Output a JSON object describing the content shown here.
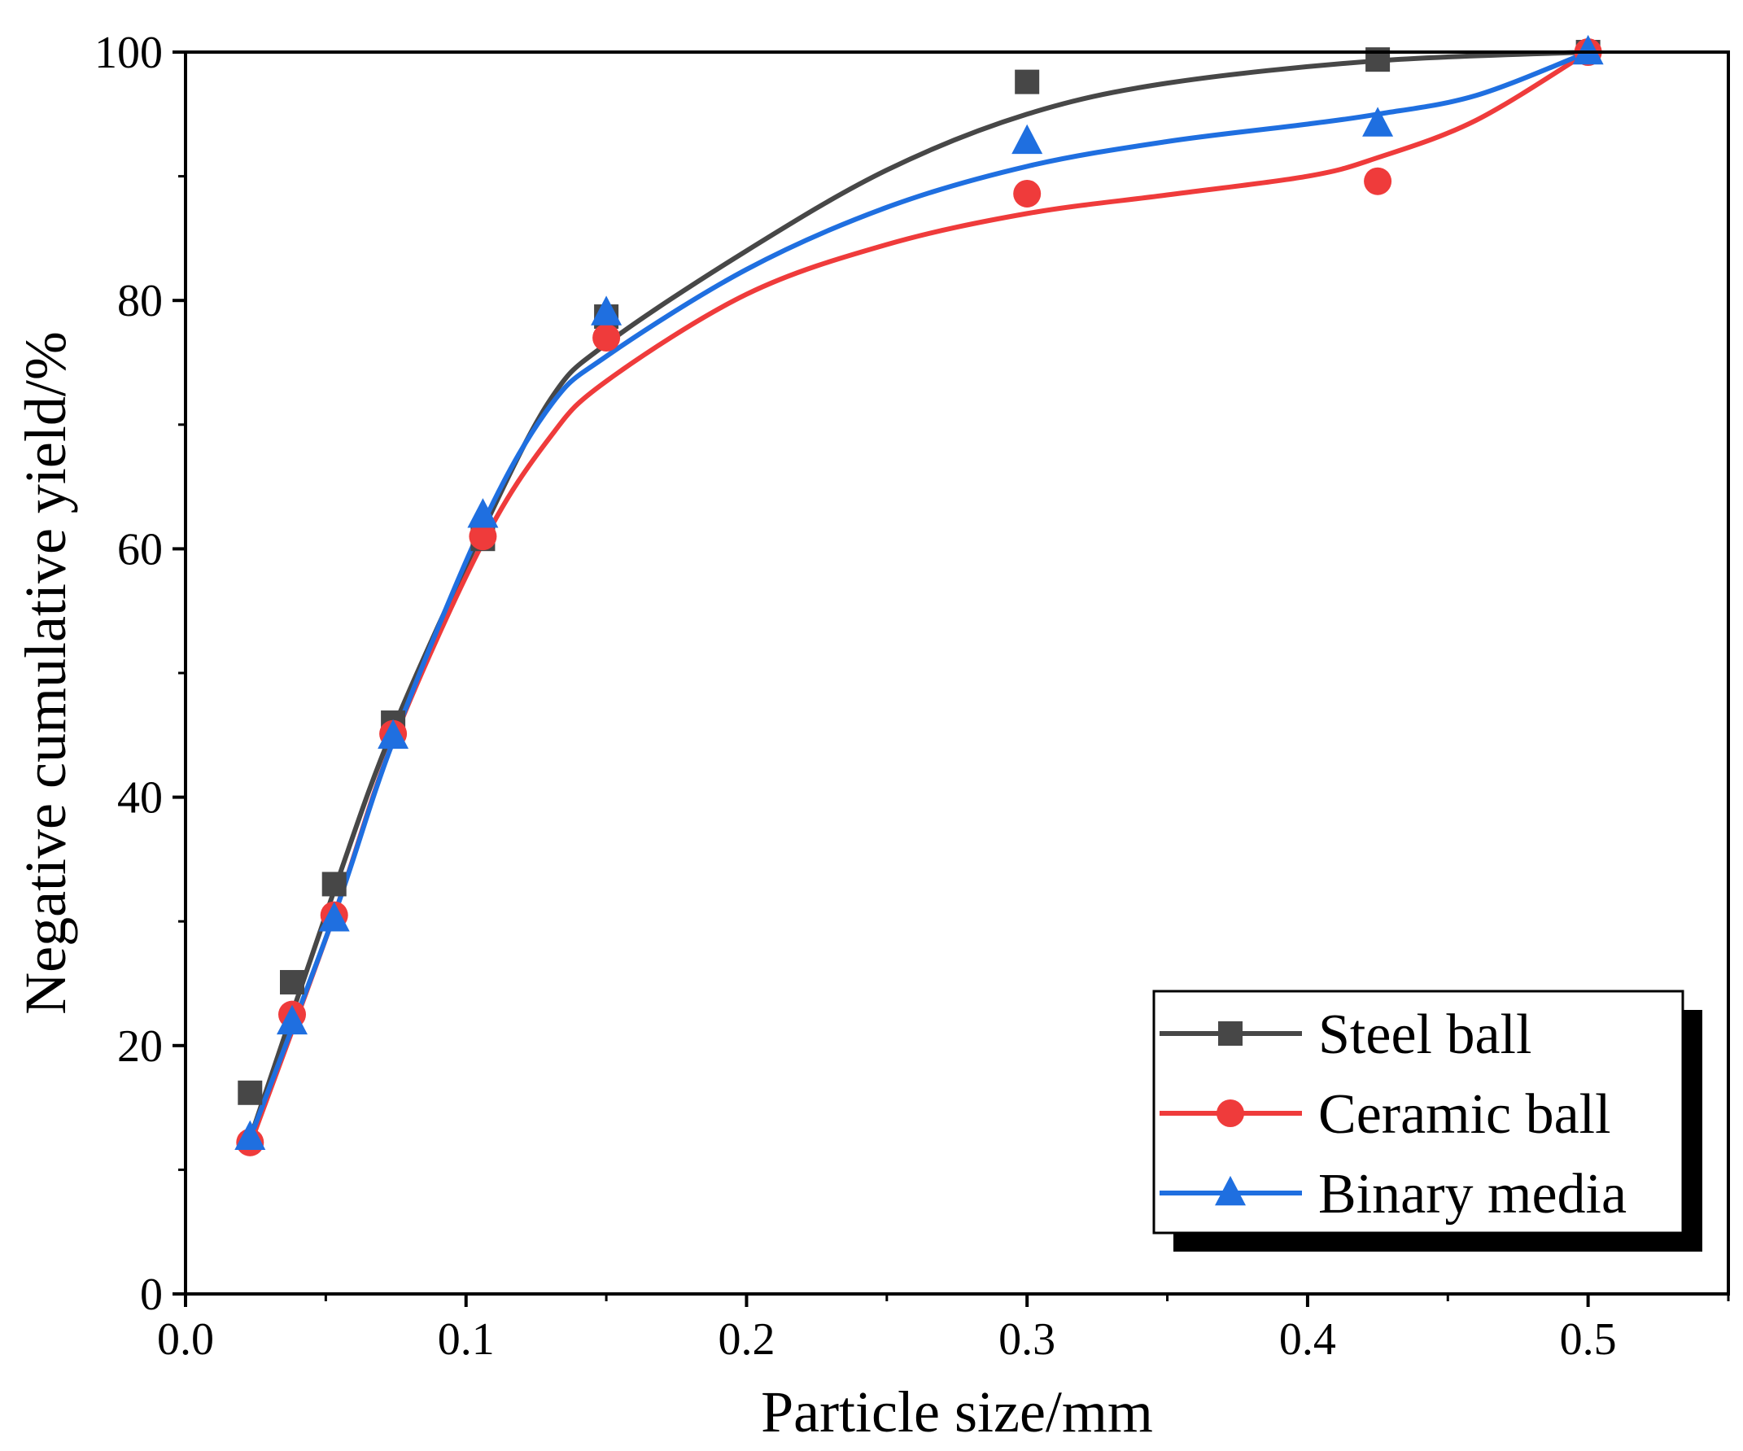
{
  "chart_data": {
    "type": "scatter",
    "title": "",
    "xlabel": "Particle size/mm",
    "ylabel": "Negative cumulative yield/%",
    "xlim": [
      0.0,
      0.55
    ],
    "ylim": [
      0,
      100
    ],
    "xticks": [
      0.0,
      0.1,
      0.2,
      0.3,
      0.4,
      0.5
    ],
    "xtick_labels": [
      "0.0",
      "0.1",
      "0.2",
      "0.3",
      "0.4",
      "0.5"
    ],
    "yticks": [
      0,
      20,
      40,
      60,
      80,
      100
    ],
    "ytick_labels": [
      "0",
      "20",
      "40",
      "60",
      "80",
      "100"
    ],
    "legend_position": "bottom-right",
    "series": [
      {
        "name": "Steel ball",
        "marker": "square",
        "color": "#474747",
        "x": [
          0.023,
          0.038,
          0.053,
          0.074,
          0.106,
          0.15,
          0.3,
          0.425,
          0.5
        ],
        "y": [
          16.2,
          25.1,
          33.0,
          46.0,
          60.8,
          78.7,
          97.6,
          99.4,
          100.0
        ],
        "fit": [
          [
            0.023,
            12.5
          ],
          [
            0.053,
            32.5
          ],
          [
            0.074,
            45.5
          ],
          [
            0.106,
            61.5
          ],
          [
            0.13,
            72.0
          ],
          [
            0.15,
            76.5
          ],
          [
            0.2,
            84.0
          ],
          [
            0.25,
            90.5
          ],
          [
            0.3,
            95.0
          ],
          [
            0.35,
            97.5
          ],
          [
            0.425,
            99.3
          ],
          [
            0.5,
            100.0
          ]
        ]
      },
      {
        "name": "Ceramic ball",
        "marker": "circle",
        "color": "#ef3b3b",
        "x": [
          0.023,
          0.038,
          0.053,
          0.074,
          0.106,
          0.15,
          0.3,
          0.425,
          0.5
        ],
        "y": [
          12.2,
          22.5,
          30.5,
          45.1,
          61.0,
          77.0,
          88.6,
          89.6,
          100.0
        ],
        "fit": [
          [
            0.023,
            12.0
          ],
          [
            0.053,
            30.5
          ],
          [
            0.074,
            44.5
          ],
          [
            0.106,
            60.5
          ],
          [
            0.13,
            69.0
          ],
          [
            0.15,
            73.5
          ],
          [
            0.2,
            80.5
          ],
          [
            0.25,
            84.5
          ],
          [
            0.3,
            87.0
          ],
          [
            0.35,
            88.5
          ],
          [
            0.4,
            90.0
          ],
          [
            0.425,
            91.5
          ],
          [
            0.46,
            94.5
          ],
          [
            0.5,
            100.0
          ]
        ]
      },
      {
        "name": "Binary media",
        "marker": "triangle",
        "color": "#1f6fe0",
        "x": [
          0.023,
          0.038,
          0.053,
          0.074,
          0.106,
          0.15,
          0.3,
          0.425,
          0.5
        ],
        "y": [
          12.6,
          21.9,
          30.2,
          44.9,
          62.7,
          79.0,
          92.8,
          94.2,
          100.0
        ],
        "fit": [
          [
            0.023,
            12.5
          ],
          [
            0.053,
            30.5
          ],
          [
            0.074,
            44.5
          ],
          [
            0.106,
            62.0
          ],
          [
            0.13,
            71.5
          ],
          [
            0.15,
            75.5
          ],
          [
            0.2,
            82.5
          ],
          [
            0.25,
            87.5
          ],
          [
            0.3,
            90.8
          ],
          [
            0.35,
            92.8
          ],
          [
            0.4,
            94.2
          ],
          [
            0.425,
            95.0
          ],
          [
            0.46,
            96.5
          ],
          [
            0.5,
            100.0
          ]
        ]
      }
    ]
  }
}
